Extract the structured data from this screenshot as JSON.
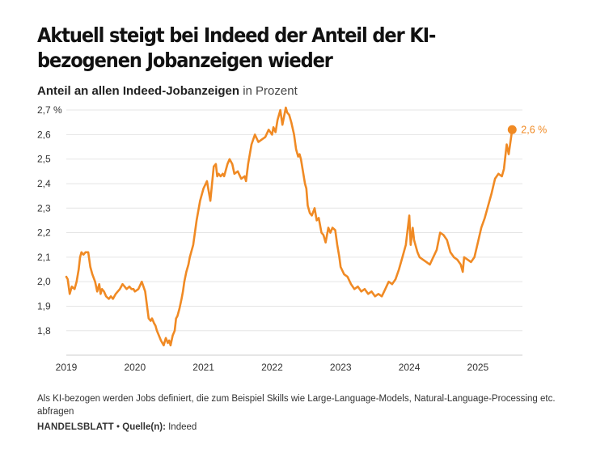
{
  "header": {
    "title": "Aktuell steigt bei Indeed der Anteil der KI-bezogenen Jobanzeigen wieder",
    "subtitle_strong": "Anteil an allen Indeed-Jobanzeigen",
    "subtitle_unit": " in Prozent"
  },
  "footer": {
    "note": "Als KI-bezogen werden Jobs definiert, die zum Beispiel Skills wie Large-Language-Models, Natural-Language-Processing etc. abfragen",
    "brand": "HANDELSBLATT",
    "separator": " • ",
    "source_label": "Quelle(n):",
    "source": " Indeed"
  },
  "colors": {
    "line": "#f08a24",
    "grid": "#e5e5e5",
    "text": "#333333"
  },
  "chart_data": {
    "type": "line",
    "title": "Aktuell steigt bei Indeed der Anteil der KI-bezogenen Jobanzeigen wieder",
    "subtitle": "Anteil an allen Indeed-Jobanzeigen in Prozent",
    "xlabel": "",
    "ylabel": "",
    "xlim": [
      2019.0,
      2025.65
    ],
    "ylim": [
      1.72,
      2.72
    ],
    "yticks": [
      1.8,
      1.9,
      2.0,
      2.1,
      2.2,
      2.3,
      2.4,
      2.5,
      2.6,
      2.7
    ],
    "ytick_labels": [
      "1,8",
      "1,9",
      "2,0",
      "2,1",
      "2,2",
      "2,3",
      "2,4",
      "2,5",
      "2,6",
      "2,7 %"
    ],
    "xticks": [
      2019,
      2020,
      2021,
      2022,
      2023,
      2024,
      2025
    ],
    "xtick_labels": [
      "2019",
      "2020",
      "2021",
      "2022",
      "2023",
      "2024",
      "2025"
    ],
    "grid": true,
    "end_label": "2,6 %",
    "series": [
      {
        "x": [
          2019.0,
          2019.02,
          2019.05,
          2019.08,
          2019.12,
          2019.15,
          2019.18,
          2019.2,
          2019.22,
          2019.25,
          2019.28,
          2019.32,
          2019.35,
          2019.38,
          2019.42,
          2019.45,
          2019.48,
          2019.5,
          2019.52,
          2019.55,
          2019.58,
          2019.62,
          2019.65,
          2019.68,
          2019.72,
          2019.75,
          2019.78,
          2019.82,
          2019.85,
          2019.88,
          2019.92,
          2019.95,
          2019.98,
          2020.0,
          2020.05,
          2020.1,
          2020.15,
          2020.2,
          2020.23,
          2020.25,
          2020.28,
          2020.3,
          2020.32,
          2020.35,
          2020.38,
          2020.42,
          2020.45,
          2020.48,
          2020.5,
          2020.52,
          2020.55,
          2020.58,
          2020.6,
          2020.62,
          2020.65,
          2020.68,
          2020.7,
          2020.72,
          2020.75,
          2020.78,
          2020.8,
          2020.85,
          2020.9,
          2020.95,
          2021.0,
          2021.05,
          2021.1,
          2021.15,
          2021.18,
          2021.2,
          2021.22,
          2021.25,
          2021.28,
          2021.3,
          2021.32,
          2021.35,
          2021.38,
          2021.42,
          2021.45,
          2021.5,
          2021.55,
          2021.6,
          2021.62,
          2021.65,
          2021.7,
          2021.75,
          2021.8,
          2021.85,
          2021.9,
          2021.95,
          2022.0,
          2022.02,
          2022.05,
          2022.08,
          2022.12,
          2022.15,
          2022.2,
          2022.22,
          2022.25,
          2022.28,
          2022.32,
          2022.35,
          2022.38,
          2022.4,
          2022.42,
          2022.45,
          2022.48,
          2022.5,
          2022.52,
          2022.55,
          2022.58,
          2022.62,
          2022.65,
          2022.68,
          2022.72,
          2022.75,
          2022.78,
          2022.8,
          2022.82,
          2022.85,
          2022.88,
          2022.92,
          2022.95,
          2022.98,
          2023.0,
          2023.05,
          2023.1,
          2023.15,
          2023.2,
          2023.25,
          2023.3,
          2023.35,
          2023.4,
          2023.45,
          2023.5,
          2023.55,
          2023.6,
          2023.65,
          2023.7,
          2023.75,
          2023.8,
          2023.85,
          2023.9,
          2023.95,
          2024.0,
          2024.02,
          2024.05,
          2024.07,
          2024.1,
          2024.12,
          2024.15,
          2024.2,
          2024.25,
          2024.3,
          2024.35,
          2024.4,
          2024.45,
          2024.5,
          2024.55,
          2024.6,
          2024.65,
          2024.7,
          2024.75,
          2024.78,
          2024.8,
          2024.85,
          2024.9,
          2024.95,
          2025.0,
          2025.05,
          2025.1,
          2025.15,
          2025.2,
          2025.25,
          2025.3,
          2025.35,
          2025.38,
          2025.42,
          2025.45,
          2025.48,
          2025.5
        ],
        "y": [
          2.02,
          2.01,
          1.95,
          1.98,
          1.97,
          2.0,
          2.05,
          2.1,
          2.12,
          2.11,
          2.12,
          2.12,
          2.06,
          2.03,
          2.0,
          1.96,
          1.99,
          1.95,
          1.97,
          1.96,
          1.94,
          1.93,
          1.94,
          1.93,
          1.95,
          1.96,
          1.97,
          1.99,
          1.98,
          1.97,
          1.98,
          1.97,
          1.97,
          1.96,
          1.97,
          2.0,
          1.96,
          1.85,
          1.84,
          1.85,
          1.83,
          1.82,
          1.8,
          1.78,
          1.76,
          1.74,
          1.77,
          1.75,
          1.76,
          1.74,
          1.78,
          1.8,
          1.85,
          1.86,
          1.89,
          1.93,
          1.96,
          2.0,
          2.04,
          2.07,
          2.1,
          2.15,
          2.25,
          2.33,
          2.38,
          2.41,
          2.33,
          2.47,
          2.48,
          2.43,
          2.44,
          2.43,
          2.44,
          2.43,
          2.45,
          2.48,
          2.5,
          2.48,
          2.44,
          2.45,
          2.42,
          2.43,
          2.41,
          2.48,
          2.56,
          2.6,
          2.57,
          2.58,
          2.59,
          2.62,
          2.6,
          2.63,
          2.61,
          2.66,
          2.7,
          2.64,
          2.71,
          2.69,
          2.68,
          2.65,
          2.6,
          2.54,
          2.51,
          2.52,
          2.5,
          2.45,
          2.4,
          2.38,
          2.31,
          2.28,
          2.27,
          2.3,
          2.25,
          2.26,
          2.2,
          2.19,
          2.16,
          2.19,
          2.22,
          2.2,
          2.22,
          2.21,
          2.15,
          2.1,
          2.06,
          2.03,
          2.02,
          1.99,
          1.97,
          1.98,
          1.96,
          1.97,
          1.95,
          1.96,
          1.94,
          1.95,
          1.94,
          1.97,
          2.0,
          1.99,
          2.01,
          2.05,
          2.1,
          2.15,
          2.27,
          2.15,
          2.22,
          2.17,
          2.14,
          2.12,
          2.1,
          2.09,
          2.08,
          2.07,
          2.1,
          2.13,
          2.2,
          2.19,
          2.17,
          2.12,
          2.1,
          2.09,
          2.07,
          2.04,
          2.1,
          2.09,
          2.08,
          2.1,
          2.16,
          2.22,
          2.26,
          2.31,
          2.36,
          2.42,
          2.44,
          2.43,
          2.46,
          2.56,
          2.52,
          2.58,
          2.62
        ]
      }
    ]
  }
}
